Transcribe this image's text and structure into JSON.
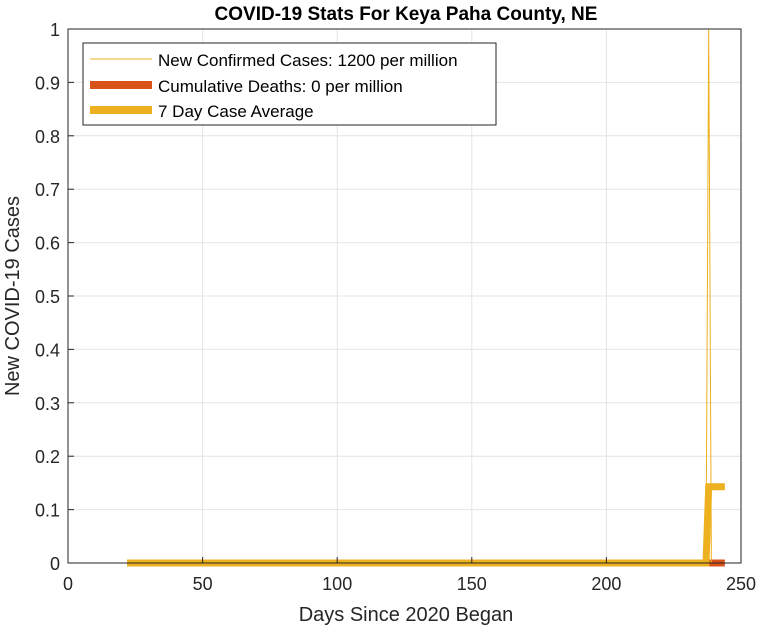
{
  "chart_data": {
    "type": "line",
    "title": "COVID-19 Stats For Keya Paha County, NE",
    "xlabel": "Days Since 2020 Began",
    "ylabel": "New COVID-19 Cases",
    "xlim": [
      0,
      250
    ],
    "ylim": [
      0,
      1
    ],
    "grid": true,
    "legend_position": "top-left",
    "x_ticks": [
      0,
      50,
      100,
      150,
      200,
      250
    ],
    "y_ticks": [
      0,
      0.1,
      0.2,
      0.3,
      0.4,
      0.5,
      0.6,
      0.7,
      0.8,
      0.9,
      1
    ],
    "x_tick_labels": [
      "0",
      "50",
      "100",
      "150",
      "200",
      "250"
    ],
    "y_tick_labels": [
      "0",
      "0.1",
      "0.2",
      "0.3",
      "0.4",
      "0.5",
      "0.6",
      "0.7",
      "0.8",
      "0.9",
      "1"
    ],
    "series": [
      {
        "name": "New Confirmed Cases: 1200 per million",
        "color": "#EDB120",
        "style": "thin",
        "x": [
          22,
          237,
          238,
          239,
          240,
          244
        ],
        "y": [
          0,
          0,
          1,
          0,
          0,
          0
        ]
      },
      {
        "name": "Cumulative Deaths: 0 per million",
        "color": "#D95319",
        "style": "thick",
        "x": [
          22,
          244
        ],
        "y": [
          0,
          0
        ]
      },
      {
        "name": "7 Day Case Average",
        "color": "#EDB120",
        "style": "thick",
        "x": [
          22,
          237,
          238,
          244
        ],
        "y": [
          0,
          0,
          0.1429,
          0.1429
        ]
      }
    ]
  }
}
